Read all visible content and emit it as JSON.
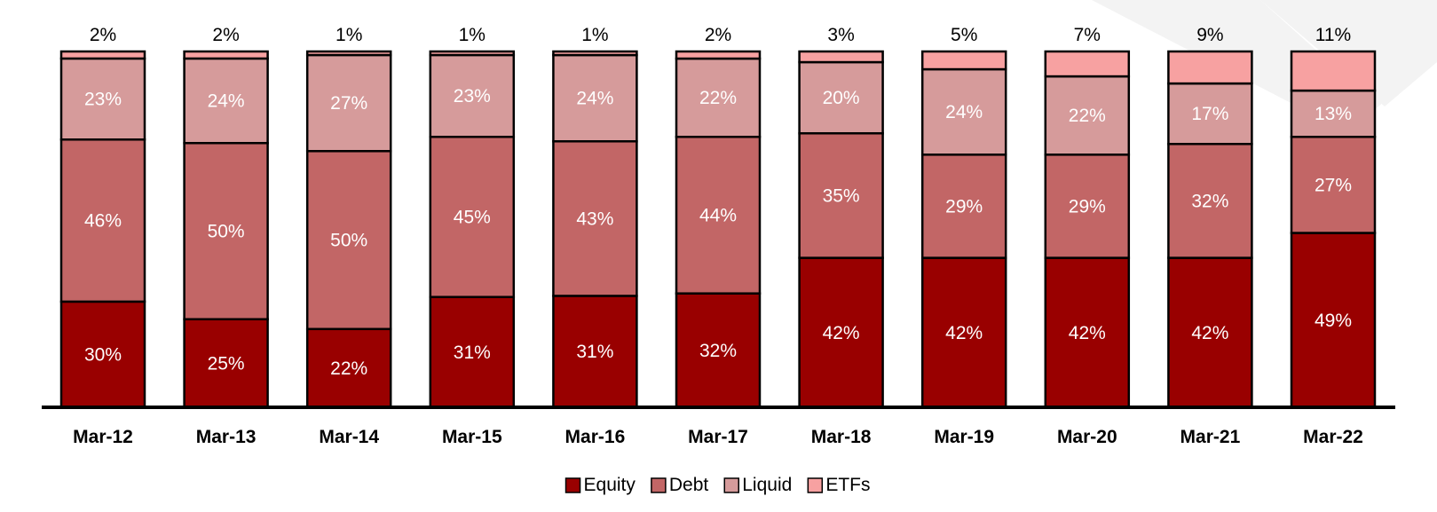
{
  "chart_data": {
    "type": "bar",
    "stacked": true,
    "percent_stacked": true,
    "categories": [
      "Mar-12",
      "Mar-13",
      "Mar-14",
      "Mar-15",
      "Mar-16",
      "Mar-17",
      "Mar-18",
      "Mar-19",
      "Mar-20",
      "Mar-21",
      "Mar-22"
    ],
    "series": [
      {
        "name": "Equity",
        "color": "#990000",
        "values": [
          30,
          25,
          22,
          31,
          31,
          32,
          42,
          42,
          42,
          42,
          49
        ]
      },
      {
        "name": "Debt",
        "color": "#c26666",
        "values": [
          46,
          50,
          50,
          45,
          43,
          44,
          35,
          29,
          29,
          32,
          27
        ]
      },
      {
        "name": "Liquid",
        "color": "#d69b9b",
        "values": [
          23,
          24,
          27,
          23,
          24,
          22,
          20,
          24,
          22,
          17,
          13
        ]
      },
      {
        "name": "ETFs",
        "color": "#f7a1a1",
        "values": [
          2,
          2,
          1,
          1,
          1,
          2,
          3,
          5,
          7,
          9,
          11
        ]
      }
    ],
    "data_label_suffix": "%",
    "data_label_colors": {
      "Equity": "#ffffff",
      "Debt": "#ffffff",
      "Liquid": "#ffffff",
      "ETFs": "#000000"
    },
    "legend_position": "bottom",
    "grid": false,
    "title": "",
    "xlabel": "",
    "ylabel": ""
  }
}
